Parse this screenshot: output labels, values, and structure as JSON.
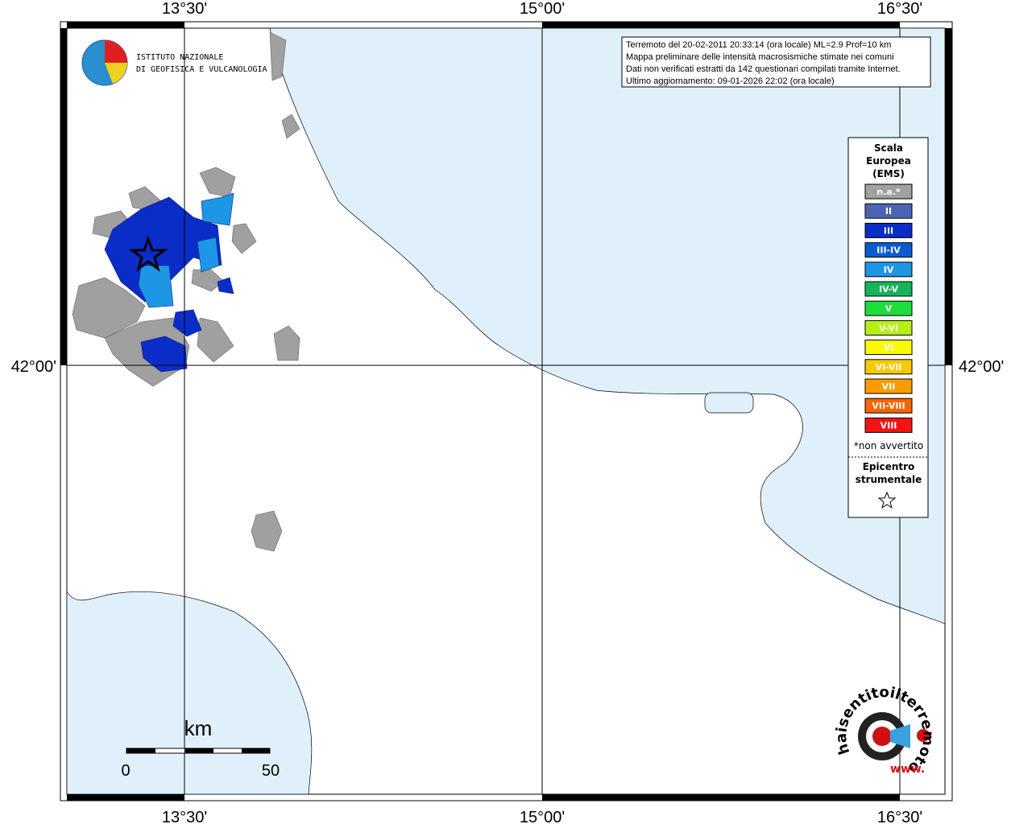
{
  "map": {
    "lon_labels_top": [
      "13°30'",
      "15°00'",
      "16°30'"
    ],
    "lon_labels_bottom": [
      "13°30'",
      "15°00'",
      "16°30'"
    ],
    "lat_label_left": "42°00'",
    "lat_label_right": "42°00'",
    "institute": [
      "ISTITUTO NAZIONALE",
      "DI GEOFISICA E VULCANOLOGIA"
    ],
    "info": [
      "Terremoto del 20-02-2011 20:33:14 (ora locale) ML=2.9 Prof=10 km",
      "Mappa preliminare delle intensità macrosismiche stimate nei comuni",
      "Dati non verificati estratti da 142 questionari compilati tramite Internet.",
      "Ultimo aggiornamento: 09-01-2026 22:02 (ora locale)"
    ],
    "legend": {
      "title": [
        "Scala",
        "Europea",
        "(EMS)"
      ],
      "items": [
        {
          "label": "n.a.*",
          "color": "#a0a0a0"
        },
        {
          "label": "II",
          "color": "#4d64b4"
        },
        {
          "label": "III",
          "color": "#0a2dc8"
        },
        {
          "label": "III-IV",
          "color": "#0a5ad2"
        },
        {
          "label": "IV",
          "color": "#1e96e6"
        },
        {
          "label": "IV-V",
          "color": "#14b45a"
        },
        {
          "label": "V",
          "color": "#1edc3c"
        },
        {
          "label": "V-VI",
          "color": "#b4f014"
        },
        {
          "label": "VI",
          "color": "#fafa00"
        },
        {
          "label": "VI-VII",
          "color": "#fac800"
        },
        {
          "label": "VII",
          "color": "#fa9b00"
        },
        {
          "label": "VII-VIII",
          "color": "#fa6400"
        },
        {
          "label": "VIII",
          "color": "#f01414"
        }
      ],
      "note": "*non avvertito",
      "epicenter": [
        "Epicentro",
        "strumentale"
      ]
    },
    "scale": {
      "unit": "km",
      "ticks": [
        0,
        50
      ]
    },
    "site_logo": {
      "name": "haisentitoilterremoto.it",
      "prefix": "www."
    }
  }
}
